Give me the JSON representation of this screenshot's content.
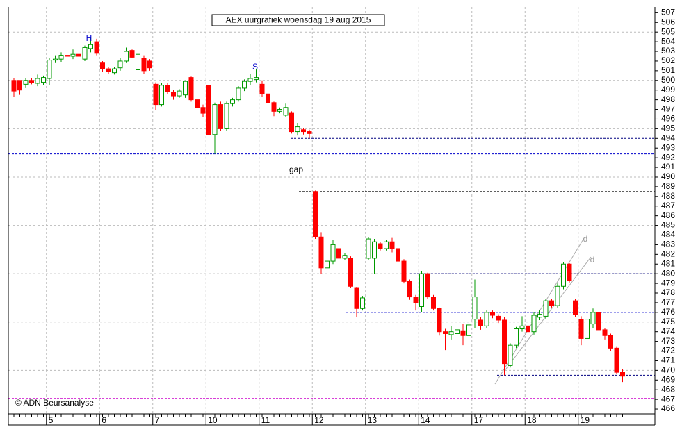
{
  "chart_data": {
    "type": "candlestick",
    "title": "AEX uurgrafiek woensdag 19 aug 2015",
    "credit": "© ADN Beursanalyse",
    "categories": [
      null,
      null,
      null,
      null,
      null,
      null,
      "5",
      null,
      null,
      null,
      null,
      null,
      null,
      null,
      null,
      "6",
      null,
      null,
      null,
      null,
      null,
      null,
      null,
      null,
      "7",
      null,
      null,
      null,
      null,
      null,
      null,
      null,
      null,
      "10",
      null,
      null,
      null,
      null,
      null,
      null,
      null,
      null,
      "11",
      null,
      null,
      null,
      null,
      null,
      null,
      null,
      null,
      "12",
      null,
      null,
      null,
      null,
      null,
      null,
      null,
      null,
      "13",
      null,
      null,
      null,
      null,
      null,
      null,
      null,
      null,
      "14",
      null,
      null,
      null,
      null,
      null,
      null,
      null,
      null,
      "17",
      null,
      null,
      null,
      null,
      null,
      null,
      null,
      null,
      "18",
      null,
      null,
      null,
      null,
      null,
      null,
      null,
      null,
      "19",
      null,
      null,
      null,
      null,
      null,
      null,
      null
    ],
    "open": [
      500,
      500,
      499.6,
      500,
      499.7,
      499.8,
      500.2,
      502.1,
      502.2,
      502.6,
      502.5,
      502.7,
      502.2,
      503.3,
      504,
      501.8,
      501.2,
      500.8,
      501.3,
      502,
      503.1,
      501.1,
      502.3,
      502,
      499.6,
      497.5,
      499.5,
      498.8,
      498.4,
      498.5,
      500.3,
      498,
      497.2,
      499.5,
      494.4,
      497.5,
      495,
      497.6,
      498,
      499.2,
      499.9,
      500.1,
      499.6,
      498.6,
      497.7,
      496.8,
      496.4,
      496.6,
      494.7,
      494.9,
      494.7,
      488.5,
      483.8,
      480.6,
      481.3,
      482.6,
      481.6,
      481.6,
      478.5,
      476.4,
      481.6,
      481.6,
      483.1,
      482.6,
      483.3,
      482.6,
      481.3,
      479.2,
      477.6,
      476.6,
      480,
      477.6,
      476.4,
      474,
      473.7,
      473.8,
      474.1,
      473.6,
      475.3,
      475.2,
      474.6,
      476,
      475.6,
      475.2,
      470.5,
      472.6,
      474.3,
      474.6,
      474,
      475.5,
      475.6,
      477.2,
      476.7,
      478.7,
      481,
      477.2,
      475.3,
      473.3,
      474.8,
      476,
      474.2,
      473.6,
      472.3,
      469.8
    ],
    "high": [
      500.2,
      500,
      500.2,
      500.2,
      500.6,
      500.5,
      502.3,
      502.6,
      502.9,
      503.5,
      503.2,
      503,
      503.6,
      504.4,
      504.3,
      502,
      501.4,
      501.4,
      502.3,
      503.4,
      503.2,
      503,
      502.6,
      502.2,
      499.8,
      499.7,
      499.7,
      499,
      499.1,
      500,
      500.4,
      498.3,
      497.5,
      500.1,
      497.7,
      497.8,
      497.8,
      498.2,
      499.4,
      500.1,
      500.7,
      501.2,
      500,
      498.9,
      497.8,
      497.2,
      497.6,
      496.8,
      495.6,
      495.1,
      494.9,
      488.6,
      484.3,
      481.5,
      483.5,
      482.8,
      482.1,
      481.8,
      478.6,
      477.7,
      483.8,
      483.6,
      483.3,
      483.5,
      483.7,
      482.8,
      481.5,
      479.4,
      477.8,
      480.3,
      480.1,
      477.8,
      476.5,
      474.3,
      474.6,
      474.7,
      474.8,
      475,
      479.4,
      475.5,
      476.2,
      476.2,
      475.8,
      475.5,
      472.8,
      474.5,
      475.6,
      474.8,
      476,
      476.2,
      477.4,
      477.4,
      479,
      481.2,
      481.1,
      477.4,
      475.6,
      475.5,
      476.4,
      476.2,
      474.4,
      473.8,
      472.5,
      470.1
    ],
    "low": [
      498.3,
      498.5,
      499.2,
      499.6,
      499.4,
      499.5,
      499.5,
      501.8,
      501.9,
      502.2,
      502.2,
      502.2,
      502,
      502.9,
      502.6,
      500.9,
      500.7,
      500.6,
      501,
      501.8,
      502.3,
      501,
      500.7,
      501,
      496.9,
      497.3,
      498.6,
      498,
      498.2,
      498.2,
      497.8,
      497,
      496.2,
      493.4,
      492.4,
      494.8,
      494.8,
      497.3,
      497.8,
      498.9,
      499.5,
      499.8,
      498.3,
      497.5,
      496.3,
      496.6,
      496.2,
      494.5,
      494.3,
      494.4,
      494,
      483.6,
      480,
      480.2,
      481,
      481.4,
      481.4,
      478.5,
      475.5,
      476.2,
      481.4,
      480,
      482.4,
      482.4,
      482.2,
      481.1,
      479,
      477.3,
      476.2,
      476,
      477.4,
      476.2,
      473.6,
      472.1,
      473.2,
      473.5,
      472.6,
      473.3,
      474.4,
      474.2,
      474.4,
      475.4,
      474.9,
      469.5,
      470.3,
      472.3,
      474,
      473.7,
      473.7,
      475.2,
      475.3,
      476.5,
      476.5,
      478.4,
      479.1,
      475.5,
      472.6,
      473.1,
      474.4,
      474,
      473.2,
      472,
      469.6,
      468.8
    ],
    "close": [
      498.9,
      499,
      500,
      499.8,
      500.2,
      500.3,
      502.1,
      502.2,
      502.6,
      502.5,
      502.7,
      502.5,
      503.4,
      503.7,
      502.8,
      501.2,
      500.9,
      501.2,
      502,
      503,
      502.4,
      502.7,
      501,
      501.3,
      497.5,
      499.5,
      498.8,
      498.4,
      498.9,
      499.9,
      498,
      497.2,
      496.6,
      494.4,
      497.5,
      495,
      497.6,
      498,
      499.2,
      499.9,
      500.2,
      500.3,
      498.6,
      497.7,
      496.8,
      497,
      497.2,
      494.7,
      495.2,
      494.7,
      494.5,
      483.8,
      480.6,
      481.3,
      483,
      481.6,
      481.9,
      478.7,
      476.4,
      477.5,
      483.6,
      483.3,
      482.6,
      483.3,
      482.6,
      481.3,
      479.2,
      477.6,
      477,
      480,
      477.6,
      476.4,
      474,
      473.8,
      474,
      474.2,
      473.6,
      474.7,
      477.6,
      474.6,
      476,
      475.7,
      475.2,
      470.7,
      472.6,
      474.3,
      474.6,
      474,
      475.7,
      475.8,
      477.2,
      476.7,
      478.7,
      481,
      479.3,
      475.8,
      473.3,
      475.3,
      476,
      474.2,
      473.6,
      472.3,
      469.8,
      469.4
    ],
    "up_color": "#009900",
    "down_color": "#ff0000",
    "ylim": [
      465.5,
      507.6
    ],
    "yticks": [
      466,
      467,
      468,
      469,
      470,
      471,
      472,
      473,
      474,
      475,
      476,
      477,
      478,
      479,
      480,
      481,
      482,
      483,
      484,
      485,
      486,
      487,
      488,
      489,
      490,
      491,
      492,
      493,
      494,
      495,
      496,
      497,
      498,
      499,
      500,
      501,
      502,
      503,
      504,
      505,
      506,
      507
    ],
    "grid": true,
    "levels": [
      {
        "value": 494,
        "color": "#000080"
      },
      {
        "value": 492.4,
        "color": "#0000cc"
      },
      {
        "value": 488.5,
        "color": "#000000"
      },
      {
        "value": 484,
        "color": "#000080"
      },
      {
        "value": 480,
        "color": "#000080"
      },
      {
        "value": 476,
        "color": "#0000cc"
      },
      {
        "value": 469.5,
        "color": "#000080"
      },
      {
        "value": 467.1,
        "color": "#cc00cc"
      }
    ],
    "annotations": [
      "H",
      "S",
      "gap",
      "d",
      "d"
    ]
  }
}
